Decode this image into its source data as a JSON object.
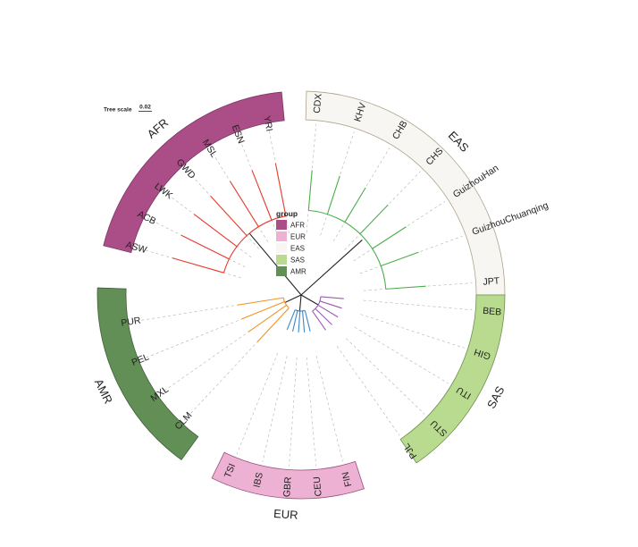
{
  "tree_scale": {
    "label": "Tree scale",
    "value": "0.02"
  },
  "legend": {
    "title": "group",
    "items": [
      {
        "label": "AFR",
        "color": "#ab4e88"
      },
      {
        "label": "EUR",
        "color": "#ecb1d3"
      },
      {
        "label": "EAS",
        "color": "#f8f6f2"
      },
      {
        "label": "SAS",
        "color": "#b9db8f"
      },
      {
        "label": "AMR",
        "color": "#618f55"
      }
    ]
  },
  "groups": [
    {
      "label": "AFR",
      "color": "#ab4e88",
      "edge": "#7d3563"
    },
    {
      "label": "EAS",
      "color": "#f8f6f2",
      "edge": "#aaa38a"
    },
    {
      "label": "SAS",
      "color": "#b9db8f",
      "edge": "#6d8e50"
    },
    {
      "label": "EUR",
      "color": "#ecb1d3",
      "edge": "#9a4d7d"
    },
    {
      "label": "AMR",
      "color": "#618f55",
      "edge": "#3f6138"
    }
  ],
  "leaves": [
    {
      "label": "YRI",
      "group": "AFR"
    },
    {
      "label": "ESN",
      "group": "AFR"
    },
    {
      "label": "MSL",
      "group": "AFR"
    },
    {
      "label": "GWD",
      "group": "AFR"
    },
    {
      "label": "LWK",
      "group": "AFR"
    },
    {
      "label": "ACB",
      "group": "AFR"
    },
    {
      "label": "ASW",
      "group": "AFR"
    },
    {
      "label": "CDX",
      "group": "EAS"
    },
    {
      "label": "KHV",
      "group": "EAS"
    },
    {
      "label": "CHB",
      "group": "EAS"
    },
    {
      "label": "CHS",
      "group": "EAS"
    },
    {
      "label": "GuizhouHan",
      "group": "EAS"
    },
    {
      "label": "GuizhouChuanqing",
      "group": "EAS"
    },
    {
      "label": "JPT",
      "group": "EAS"
    },
    {
      "label": "BEB",
      "group": "SAS"
    },
    {
      "label": "GIH",
      "group": "SAS"
    },
    {
      "label": "ITU",
      "group": "SAS"
    },
    {
      "label": "STU",
      "group": "SAS"
    },
    {
      "label": "PJL",
      "group": "SAS"
    },
    {
      "label": "FIN",
      "group": "EUR"
    },
    {
      "label": "CEU",
      "group": "EUR"
    },
    {
      "label": "GBR",
      "group": "EUR"
    },
    {
      "label": "IBS",
      "group": "EUR"
    },
    {
      "label": "TSI",
      "group": "EUR"
    },
    {
      "label": "CLM",
      "group": "AMR"
    },
    {
      "label": "MXL",
      "group": "AMR"
    },
    {
      "label": "PEL",
      "group": "AMR"
    },
    {
      "label": "PUR",
      "group": "AMR"
    }
  ],
  "branch_colors": {
    "AFR": "#e8392c",
    "EAS": "#4cae4c",
    "SAS": "#9b59b6",
    "EUR": "#3a87c8",
    "AMR": "#f39221",
    "root": "#222222"
  }
}
